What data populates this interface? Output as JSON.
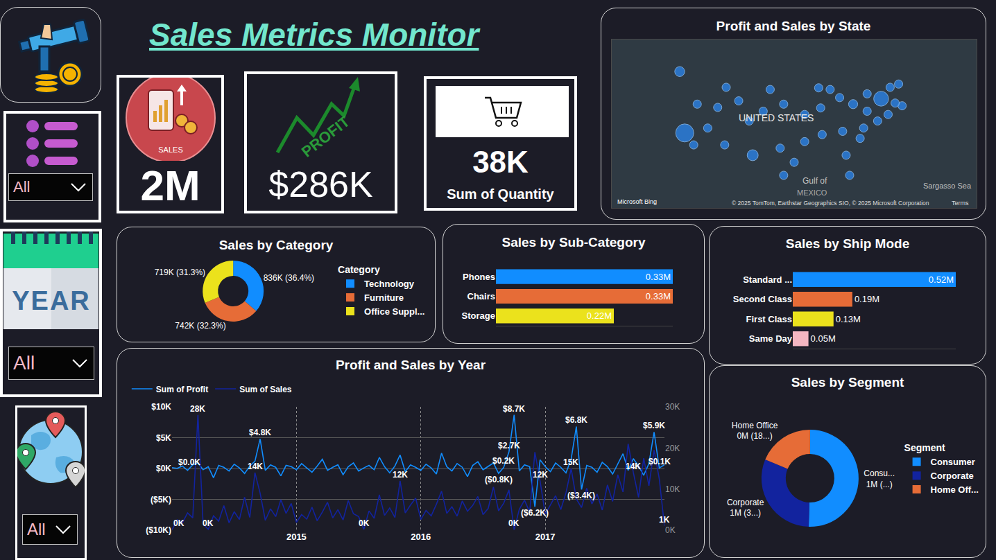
{
  "title": "Sales Metrics Monitor",
  "slicers": [
    {
      "value": "All"
    },
    {
      "icon_text": "YEAR",
      "value": "All"
    },
    {
      "value": "All"
    }
  ],
  "kpis": [
    {
      "icon_text": "SALES",
      "value": "2M"
    },
    {
      "icon_text": "PROFIT",
      "value": "$286K"
    },
    {
      "value": "38K",
      "label": "Sum of Quantity"
    }
  ],
  "chart_data": [
    {
      "type": "scatter",
      "title": "Profit and Sales by State",
      "x": [
        -114.4,
        -113.4,
        -110.9,
        -108.8,
        -111.6,
        -105.4,
        -106.8,
        -105.1,
        -102.6,
        -100.5,
        -99.8,
        -96.3,
        -97.7,
        -93.6,
        -94.3,
        -93.6,
        -91.5,
        -89.4,
        -89.4,
        -86.6,
        -86.2,
        -84.3,
        -85.9,
        -81.8,
        -82.4,
        -79.7,
        -76.9,
        -81.1,
        -78.3,
        -80.4,
        -77.6,
        -74.8,
        -72.7,
        -74.1,
        -72.3,
        -70.6,
        -69.9,
        -71.3,
        -76.9
      ],
      "y": [
        48.1,
        36.8,
        42.1,
        37.7,
        34.6,
        34.6,
        41.5,
        45.2,
        42.7,
        39.0,
        32.7,
        44.8,
        40.8,
        42.1,
        34.0,
        29.0,
        31.4,
        35.2,
        40.2,
        45.1,
        41.4,
        44.8,
        36.5,
        37.1,
        43.3,
        42.1,
        40.8,
        32.7,
        35.8,
        29.0,
        37.7,
        39.0,
        40.2,
        43.1,
        45.2,
        45.8,
        41.8,
        42.3,
        44.0
      ],
      "sizes": [
        139,
        457,
        20,
        10,
        35,
        5,
        2,
        3,
        1,
        3,
        170,
        8,
        7,
        5,
        12,
        9,
        10,
        30,
        80,
        32,
        54,
        76,
        36,
        70,
        78,
        117,
        23,
        49,
        55,
        89,
        8,
        28,
        13,
        310,
        9,
        5,
        28,
        22,
        7
      ],
      "color": "#2b82e6",
      "xlim": [
        -128,
        -55
      ],
      "ylim": [
        23,
        54
      ],
      "tick_labels": false,
      "grid": false,
      "annotations": [
        "UNITED STATES",
        "Gulf of",
        "MEXICO",
        "Sargasso Sea",
        "Microsoft Bing",
        "© 2025 TomTom, Earthstar Geographics SIO, © 2025 Microsoft Corporation",
        "Terms"
      ]
    },
    {
      "type": "pie",
      "title": "Sales by Category",
      "legend": "right",
      "legend_title": "Category",
      "categories": [
        "Technology",
        "Furniture",
        "Office Suppl..."
      ],
      "values": [
        836000,
        742000,
        719000
      ],
      "value_labels": [
        "836K (36.4%)",
        "742K (32.3%)",
        "719K (31.3%)"
      ],
      "colors": [
        "#118dff",
        "#e66c37",
        "#ebe21c"
      ],
      "data_labels": true
    },
    {
      "type": "bar",
      "title": "Sales by Sub-Category",
      "orientation": "horizontal",
      "categories": [
        "Phones",
        "Chairs",
        "Storage"
      ],
      "values": [
        0.33,
        0.33,
        0.22
      ],
      "value_labels": [
        "0.33M",
        "0.33M",
        "0.22M"
      ],
      "colors": [
        "#118dff",
        "#e66c37",
        "#ebe21c"
      ],
      "xlim": [
        0,
        0.33
      ],
      "data_labels": true,
      "tick_labels": "y",
      "grid": false
    },
    {
      "type": "bar",
      "title": "Sales by Ship Mode",
      "orientation": "horizontal",
      "categories": [
        "Standard ...",
        "Second Class",
        "First Class",
        "Same Day"
      ],
      "values": [
        0.52,
        0.19,
        0.13,
        0.05
      ],
      "value_labels": [
        "0.52M",
        "0.19M",
        "0.13M",
        "0.05M"
      ],
      "colors": [
        "#118dff",
        "#e66c37",
        "#ebe21c",
        "#f4b6c1"
      ],
      "xlim": [
        0,
        0.52
      ],
      "data_labels": true,
      "tick_labels": "y",
      "grid": false
    },
    {
      "type": "line",
      "title": "Profit and Sales by Year",
      "legend": "top-left",
      "grid": true,
      "categories": [
        null,
        null,
        null,
        null,
        null,
        null,
        null,
        null,
        null,
        null,
        null,
        null,
        null,
        null,
        null,
        null,
        null,
        null,
        null,
        null,
        null,
        null,
        null,
        null,
        "2015",
        null,
        null,
        null,
        null,
        null,
        null,
        null,
        null,
        null,
        null,
        null,
        null,
        null,
        null,
        null,
        null,
        null,
        null,
        null,
        null,
        null,
        null,
        null,
        "2016",
        null,
        null,
        null,
        null,
        null,
        null,
        null,
        null,
        null,
        null,
        null,
        null,
        null,
        null,
        null,
        null,
        null,
        null,
        null,
        null,
        null,
        null,
        null,
        "2017",
        null,
        null,
        null,
        null,
        null,
        null,
        null,
        null,
        null,
        null,
        null,
        null,
        null,
        null,
        null,
        null,
        null,
        null,
        null,
        null,
        null,
        null,
        null
      ],
      "series": [
        {
          "name": "Sum of Profit",
          "color": "#118dff",
          "axis": "y",
          "values": [
            150,
            30,
            400,
            -300,
            600,
            900,
            -200,
            300,
            -1500,
            500,
            200,
            -400,
            700,
            100,
            -800,
            400,
            1200,
            4800,
            -300,
            600,
            200,
            -1200,
            500,
            300,
            -200,
            800,
            100,
            -600,
            400,
            1500,
            -300,
            200,
            600,
            -1000,
            300,
            900,
            -400,
            100,
            500,
            -200,
            1800,
            300,
            -700,
            400,
            2200,
            -500,
            600,
            200,
            -300,
            700,
            100,
            -900,
            2500,
            300,
            -400,
            800,
            200,
            -1300,
            500,
            1100,
            -200,
            400,
            900,
            -800,
            200,
            2700,
            8700,
            -400,
            600,
            300,
            -6200,
            1400,
            300,
            -500,
            900,
            200,
            -700,
            1500,
            6800,
            -3400,
            500,
            200,
            -600,
            1000,
            300,
            -900,
            700,
            2400,
            -300,
            1600,
            400,
            -1100,
            800,
            5900,
            100,
            600
          ]
        },
        {
          "name": "Sum of Sales",
          "color": "#12239e",
          "axis": "y2",
          "values": [
            100,
            2500,
            1800,
            4200,
            3000,
            28000,
            1500,
            200,
            3500,
            2200,
            6000,
            1800,
            4500,
            2600,
            8000,
            3100,
            14000,
            9000,
            2400,
            5200,
            3300,
            7400,
            4100,
            6500,
            1900,
            3800,
            2700,
            5600,
            2300,
            4400,
            6800,
            3000,
            5000,
            2500,
            7200,
            4000,
            3300,
            200,
            4700,
            2900,
            8600,
            3600,
            5400,
            3100,
            12000,
            4200,
            6100,
            7800,
            2600,
            4800,
            3500,
            6300,
            9500,
            4100,
            5700,
            3400,
            7100,
            4600,
            6000,
            8200,
            3800,
            5300,
            10500,
            4700,
            6600,
            9800,
            100,
            5100,
            7300,
            4400,
            19000,
            12000,
            3900,
            6200,
            8400,
            5000,
            9100,
            15000,
            7600,
            5500,
            10200,
            6400,
            8800,
            4900,
            11000,
            7000,
            13500,
            9300,
            21000,
            14000,
            8000,
            17500,
            10800,
            19500,
            12500,
            1000
          ]
        }
      ],
      "ylim": [
        -10000,
        10000
      ],
      "yticks": [
        {
          "value": 10000,
          "label": "$10K"
        },
        {
          "value": 5000,
          "label": "$5K"
        },
        {
          "value": 0,
          "label": "$0K"
        },
        {
          "value": -5000,
          "label": "($5K)"
        },
        {
          "value": -10000,
          "label": "($10K)"
        }
      ],
      "y2lim": [
        0,
        30000
      ],
      "y2ticks": [
        {
          "value": 0,
          "label": "0K"
        },
        {
          "value": 10000,
          "label": "10K"
        },
        {
          "value": 20000,
          "label": "20K"
        },
        {
          "value": 30000,
          "label": "30K"
        }
      ],
      "annotations": [
        {
          "text": "$0.0K",
          "x": 1,
          "y": 30,
          "axis": "y"
        },
        {
          "text": "$4.8K",
          "x": 17,
          "y": 4800,
          "axis": "y"
        },
        {
          "text": "($0.8K)",
          "x": 63,
          "y": -800,
          "axis": "y"
        },
        {
          "text": "$0.2K",
          "x": 64,
          "y": 200,
          "axis": "y"
        },
        {
          "text": "$2.7K",
          "x": 65,
          "y": 2700,
          "axis": "y"
        },
        {
          "text": "$8.7K",
          "x": 66,
          "y": 8700,
          "axis": "y"
        },
        {
          "text": "($6.2K)",
          "x": 70,
          "y": -6200,
          "axis": "y"
        },
        {
          "text": "$6.8K",
          "x": 78,
          "y": 6800,
          "axis": "y"
        },
        {
          "text": "($3.4K)",
          "x": 79,
          "y": -3400,
          "axis": "y"
        },
        {
          "text": "$5.9K",
          "x": 93,
          "y": 5900,
          "axis": "y"
        },
        {
          "text": "$0.1K",
          "x": 94,
          "y": 100,
          "axis": "y"
        },
        {
          "text": "0K",
          "x": 0,
          "y": 100,
          "axis": "y2"
        },
        {
          "text": "28K",
          "x": 5,
          "y": 28000,
          "axis": "y2"
        },
        {
          "text": "0K",
          "x": 7,
          "y": 200,
          "axis": "y2"
        },
        {
          "text": "14K",
          "x": 16,
          "y": 14000,
          "axis": "y2"
        },
        {
          "text": "0K",
          "x": 37,
          "y": 200,
          "axis": "y2"
        },
        {
          "text": "12K",
          "x": 44,
          "y": 12000,
          "axis": "y2"
        },
        {
          "text": "0K",
          "x": 66,
          "y": 100,
          "axis": "y2"
        },
        {
          "text": "12K",
          "x": 71,
          "y": 12000,
          "axis": "y2"
        },
        {
          "text": "15K",
          "x": 77,
          "y": 15000,
          "axis": "y2"
        },
        {
          "text": "14K",
          "x": 89,
          "y": 14000,
          "axis": "y2"
        },
        {
          "text": "1K",
          "x": 95,
          "y": 1000,
          "axis": "y2"
        }
      ]
    },
    {
      "type": "pie",
      "title": "Sales by Segment",
      "legend": "right",
      "legend_title": "Segment",
      "categories": [
        "Consumer",
        "Corporate",
        "Home Off..."
      ],
      "slice_names": [
        "Consu...",
        "Corporate",
        "Home Office"
      ],
      "values": [
        1160000,
        710000,
        430000
      ],
      "value_labels": [
        "1M (...)",
        "1M (3...)",
        "0M (18...)"
      ],
      "colors": [
        "#118dff",
        "#12239e",
        "#e66c37"
      ],
      "data_labels": true
    }
  ]
}
